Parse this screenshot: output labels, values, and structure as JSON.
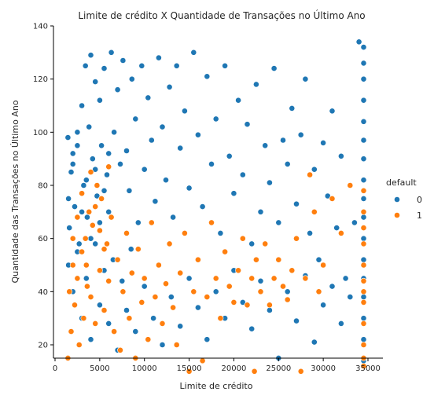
{
  "chart_data": {
    "type": "scatter",
    "title": "Limite de crédito X Quantidade de Transações no Último Ano",
    "xlabel": "Limite de crédito",
    "ylabel": "Quantidade das Transações no Último Ano",
    "xlim": [
      0,
      36000
    ],
    "ylim": [
      4,
      140
    ],
    "xticks": [
      0,
      5000,
      10000,
      15000,
      20000,
      25000,
      30000,
      35000
    ],
    "yticks": [
      20,
      40,
      60,
      80,
      100,
      120,
      140
    ],
    "grid": false,
    "legend": {
      "title": "default",
      "placement": "right",
      "entries": [
        {
          "label": "0",
          "color": "#1f77b4"
        },
        {
          "label": "1",
          "color": "#ff7f0e"
        }
      ]
    },
    "series": [
      {
        "label": "0",
        "color": "#1f77b4",
        "points": [
          [
            1438,
            98
          ],
          [
            1600,
            64
          ],
          [
            1800,
            85
          ],
          [
            2000,
            92
          ],
          [
            2200,
            72
          ],
          [
            2500,
            100
          ],
          [
            2700,
            58
          ],
          [
            3000,
            110
          ],
          [
            3200,
            80
          ],
          [
            3400,
            125
          ],
          [
            3600,
            68
          ],
          [
            3800,
            102
          ],
          [
            4000,
            129
          ],
          [
            4200,
            90
          ],
          [
            4500,
            119
          ],
          [
            4700,
            76
          ],
          [
            5000,
            112
          ],
          [
            5200,
            95
          ],
          [
            5500,
            124
          ],
          [
            5800,
            84
          ],
          [
            6000,
            70
          ],
          [
            6300,
            130
          ],
          [
            6600,
            100
          ],
          [
            7000,
            116
          ],
          [
            7300,
            88
          ],
          [
            7600,
            127
          ],
          [
            8000,
            93
          ],
          [
            8300,
            78
          ],
          [
            8600,
            120
          ],
          [
            9000,
            105
          ],
          [
            9300,
            66
          ],
          [
            9700,
            125
          ],
          [
            10000,
            86
          ],
          [
            10400,
            113
          ],
          [
            10800,
            97
          ],
          [
            11200,
            74
          ],
          [
            11600,
            128
          ],
          [
            12000,
            102
          ],
          [
            12400,
            82
          ],
          [
            12800,
            117
          ],
          [
            13200,
            68
          ],
          [
            13600,
            125
          ],
          [
            14000,
            94
          ],
          [
            14500,
            108
          ],
          [
            15000,
            79
          ],
          [
            15500,
            130
          ],
          [
            16000,
            99
          ],
          [
            16500,
            72
          ],
          [
            17000,
            121
          ],
          [
            17500,
            88
          ],
          [
            18000,
            105
          ],
          [
            18500,
            62
          ],
          [
            19000,
            125
          ],
          [
            19500,
            91
          ],
          [
            20000,
            77
          ],
          [
            20500,
            112
          ],
          [
            21000,
            84
          ],
          [
            21500,
            103
          ],
          [
            22000,
            58
          ],
          [
            22500,
            118
          ],
          [
            23000,
            70
          ],
          [
            23500,
            95
          ],
          [
            24000,
            81
          ],
          [
            24500,
            124
          ],
          [
            25000,
            66
          ],
          [
            25500,
            97
          ],
          [
            26000,
            88
          ],
          [
            26500,
            109
          ],
          [
            27000,
            73
          ],
          [
            27500,
            99
          ],
          [
            28000,
            120
          ],
          [
            28500,
            62
          ],
          [
            29000,
            86
          ],
          [
            29500,
            52
          ],
          [
            30000,
            96
          ],
          [
            30500,
            76
          ],
          [
            31000,
            108
          ],
          [
            31500,
            64
          ],
          [
            32000,
            91
          ],
          [
            32500,
            45
          ],
          [
            33000,
            80
          ],
          [
            33500,
            66
          ],
          [
            34000,
            134
          ],
          [
            34516,
            132
          ],
          [
            34516,
            126
          ],
          [
            34516,
            120
          ],
          [
            34516,
            112
          ],
          [
            34516,
            104
          ],
          [
            34516,
            97
          ],
          [
            34516,
            90
          ],
          [
            34516,
            82
          ],
          [
            34516,
            75
          ],
          [
            34516,
            68
          ],
          [
            34516,
            60
          ],
          [
            34516,
            52
          ],
          [
            34516,
            45
          ],
          [
            34516,
            38
          ],
          [
            34516,
            30
          ],
          [
            34516,
            22
          ],
          [
            34516,
            14
          ],
          [
            2000,
            40
          ],
          [
            3000,
            30
          ],
          [
            4000,
            22
          ],
          [
            5000,
            35
          ],
          [
            6000,
            28
          ],
          [
            7000,
            18
          ],
          [
            8000,
            33
          ],
          [
            9000,
            25
          ],
          [
            10000,
            42
          ],
          [
            11000,
            30
          ],
          [
            12000,
            20
          ],
          [
            13000,
            38
          ],
          [
            14000,
            27
          ],
          [
            15000,
            45
          ],
          [
            16000,
            34
          ],
          [
            17000,
            22
          ],
          [
            18000,
            40
          ],
          [
            19000,
            30
          ],
          [
            20000,
            48
          ],
          [
            21000,
            36
          ],
          [
            22000,
            26
          ],
          [
            23000,
            44
          ],
          [
            24000,
            33
          ],
          [
            25000,
            15
          ],
          [
            26000,
            40
          ],
          [
            27000,
            29
          ],
          [
            28000,
            46
          ],
          [
            29000,
            21
          ],
          [
            30000,
            35
          ],
          [
            31000,
            42
          ],
          [
            32000,
            28
          ],
          [
            33000,
            38
          ],
          [
            1500,
            50
          ],
          [
            2500,
            55
          ],
          [
            3500,
            45
          ],
          [
            4500,
            58
          ],
          [
            5500,
            48
          ],
          [
            6500,
            52
          ],
          [
            7500,
            44
          ],
          [
            8500,
            56
          ],
          [
            1500,
            75
          ],
          [
            2000,
            88
          ],
          [
            2500,
            95
          ],
          [
            3000,
            70
          ],
          [
            3500,
            82
          ],
          [
            4000,
            60
          ],
          [
            4500,
            86
          ],
          [
            5000,
            66
          ],
          [
            5500,
            78
          ],
          [
            6000,
            92
          ]
        ]
      },
      {
        "label": "1",
        "color": "#ff7f0e",
        "points": [
          [
            1438,
            15
          ],
          [
            1600,
            40
          ],
          [
            1800,
            25
          ],
          [
            2000,
            50
          ],
          [
            2200,
            35
          ],
          [
            2500,
            45
          ],
          [
            2700,
            20
          ],
          [
            3000,
            55
          ],
          [
            3200,
            30
          ],
          [
            3400,
            60
          ],
          [
            3600,
            42
          ],
          [
            3800,
            70
          ],
          [
            4000,
            38
          ],
          [
            4200,
            65
          ],
          [
            4500,
            28
          ],
          [
            4700,
            80
          ],
          [
            5000,
            48
          ],
          [
            5200,
            75
          ],
          [
            5500,
            33
          ],
          [
            5800,
            58
          ],
          [
            6000,
            44
          ],
          [
            6300,
            68
          ],
          [
            6600,
            25
          ],
          [
            7000,
            52
          ],
          [
            7300,
            18
          ],
          [
            7600,
            40
          ],
          [
            8000,
            62
          ],
          [
            8300,
            30
          ],
          [
            8600,
            47
          ],
          [
            9000,
            15
          ],
          [
            9300,
            56
          ],
          [
            9700,
            36
          ],
          [
            10000,
            45
          ],
          [
            10400,
            22
          ],
          [
            10800,
            66
          ],
          [
            11200,
            38
          ],
          [
            11600,
            50
          ],
          [
            12000,
            28
          ],
          [
            12400,
            43
          ],
          [
            12800,
            58
          ],
          [
            13200,
            34
          ],
          [
            13600,
            20
          ],
          [
            14000,
            47
          ],
          [
            14500,
            62
          ],
          [
            15000,
            10
          ],
          [
            15500,
            40
          ],
          [
            16000,
            52
          ],
          [
            16500,
            14
          ],
          [
            17000,
            38
          ],
          [
            17500,
            66
          ],
          [
            18000,
            45
          ],
          [
            18500,
            30
          ],
          [
            19000,
            55
          ],
          [
            19500,
            42
          ],
          [
            20000,
            36
          ],
          [
            20500,
            48
          ],
          [
            21000,
            60
          ],
          [
            21500,
            35
          ],
          [
            22000,
            45
          ],
          [
            22300,
            10
          ],
          [
            22500,
            52
          ],
          [
            23000,
            40
          ],
          [
            23500,
            58
          ],
          [
            24000,
            35
          ],
          [
            24500,
            45
          ],
          [
            25000,
            52
          ],
          [
            25500,
            42
          ],
          [
            26000,
            37
          ],
          [
            26500,
            48
          ],
          [
            27000,
            60
          ],
          [
            27500,
            10
          ],
          [
            28000,
            45
          ],
          [
            28500,
            84
          ],
          [
            29000,
            70
          ],
          [
            29500,
            40
          ],
          [
            30000,
            50
          ],
          [
            31000,
            75
          ],
          [
            32000,
            62
          ],
          [
            33000,
            80
          ],
          [
            34516,
            78
          ],
          [
            34516,
            70
          ],
          [
            34516,
            64
          ],
          [
            34516,
            58
          ],
          [
            34516,
            50
          ],
          [
            34516,
            44
          ],
          [
            34516,
            40
          ],
          [
            34516,
            36
          ],
          [
            34516,
            28
          ],
          [
            34516,
            20
          ],
          [
            34516,
            15
          ],
          [
            34516,
            12
          ],
          [
            2000,
            60
          ],
          [
            2500,
            68
          ],
          [
            3000,
            77
          ],
          [
            3500,
            50
          ],
          [
            4000,
            85
          ],
          [
            4500,
            72
          ],
          [
            5000,
            63
          ],
          [
            5500,
            56
          ],
          [
            6000,
            87
          ]
        ]
      }
    ]
  }
}
